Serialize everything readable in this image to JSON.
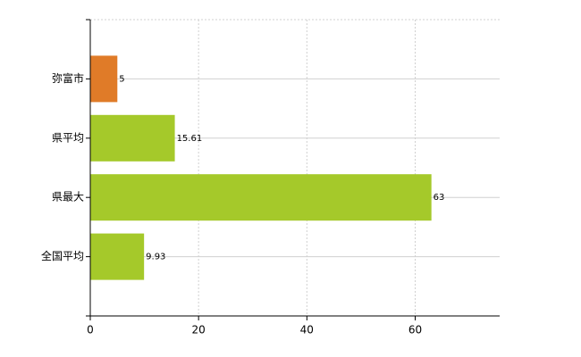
{
  "chart_data": {
    "type": "barh",
    "categories": [
      "弥富市",
      "県平均",
      "県最大",
      "全国平均"
    ],
    "values": [
      5,
      15.61,
      63,
      9.93
    ],
    "colors": [
      "#e07b28",
      "#a5c92a",
      "#a5c92a",
      "#a5c92a"
    ],
    "xlim": [
      0,
      75.6
    ],
    "xticks": [
      0,
      20,
      40,
      60
    ],
    "grid": true
  }
}
